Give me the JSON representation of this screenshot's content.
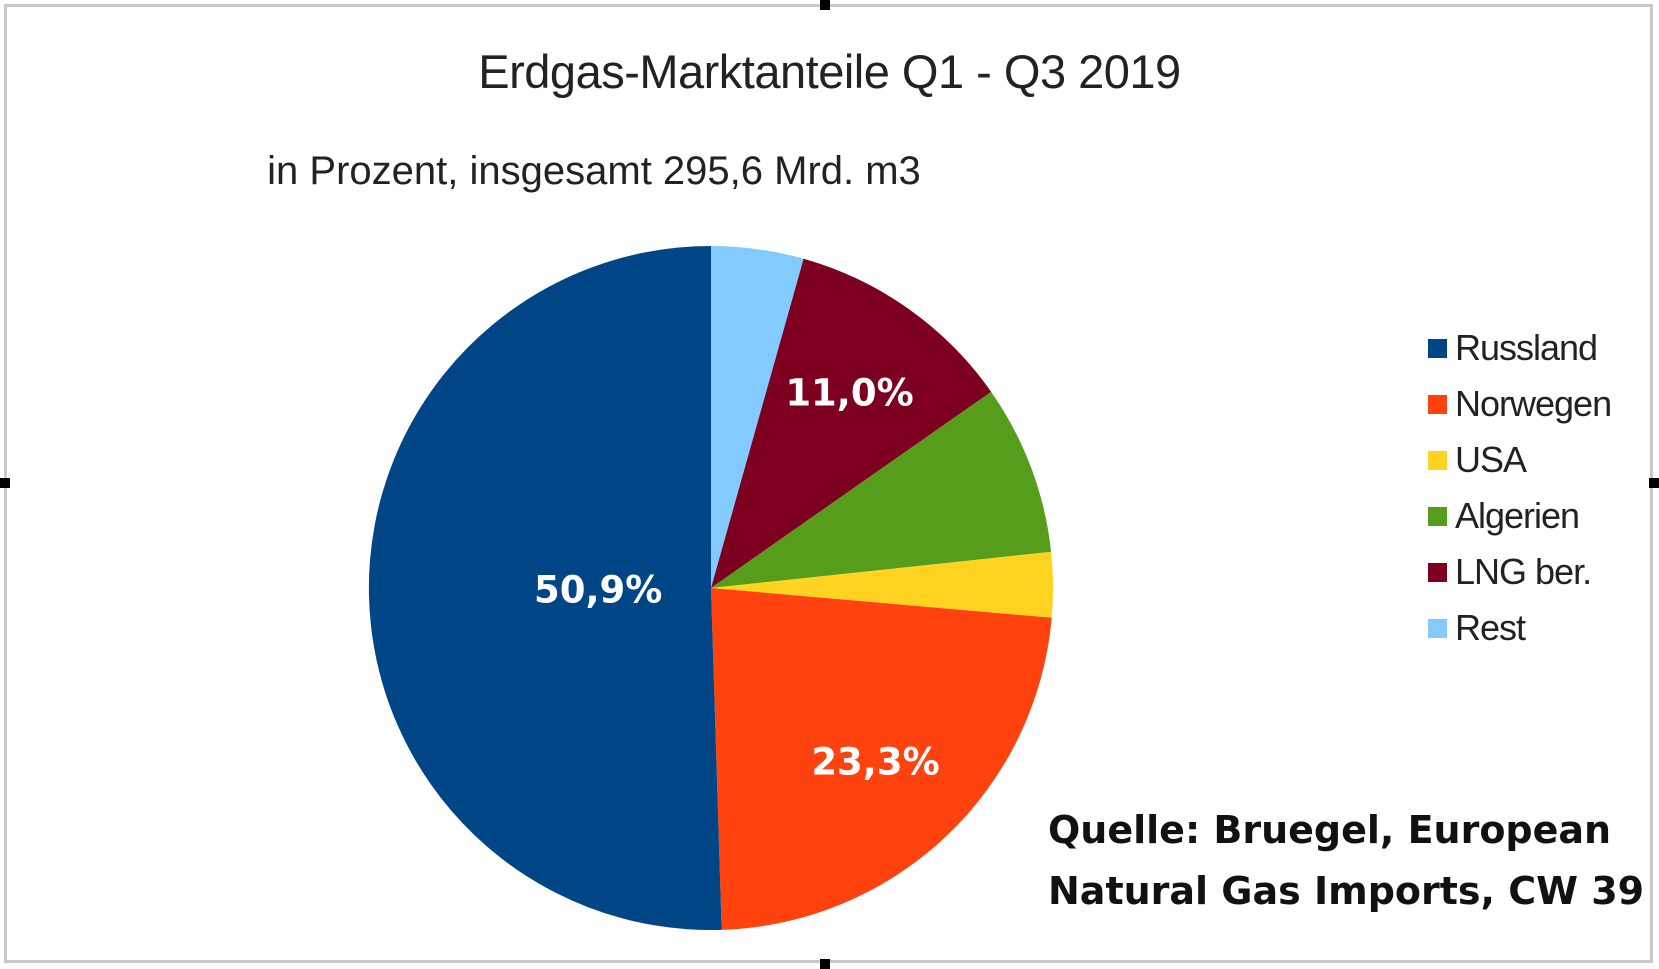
{
  "chart_data": {
    "type": "pie",
    "title": "Erdgas-Marktanteile Q1 - Q3 2019",
    "subtitle": "in Prozent, insgesamt 295,6 Mrd. m3",
    "start_angle_deg": 0,
    "direction": "clockwise",
    "slices": [
      {
        "name": "Rest",
        "value": 4.4,
        "color": "#83caff",
        "label": ""
      },
      {
        "name": "LNG ber.",
        "value": 11.0,
        "color": "#7e0021",
        "label": "11,0%"
      },
      {
        "name": "Algerien",
        "value": 8.1,
        "color": "#579d1c",
        "label": ""
      },
      {
        "name": "USA",
        "value": 3.1,
        "color": "#ffd320",
        "label": ""
      },
      {
        "name": "Norwegen",
        "value": 23.3,
        "color": "#ff420e",
        "label": "23,3%"
      },
      {
        "name": "Russland",
        "value": 50.9,
        "color": "#004586",
        "label": "50,9%"
      }
    ],
    "legend": {
      "placement": "right",
      "entries": [
        {
          "name": "Russland",
          "color": "#004586"
        },
        {
          "name": "Norwegen",
          "color": "#ff420e"
        },
        {
          "name": "USA",
          "color": "#ffd320"
        },
        {
          "name": "Algerien",
          "color": "#579d1c"
        },
        {
          "name": "LNG ber.",
          "color": "#7e0021"
        },
        {
          "name": "Rest",
          "color": "#83caff"
        }
      ]
    },
    "source_lines": [
      "Quelle: Bruegel, European",
      "Natural Gas Imports, CW 39"
    ]
  }
}
